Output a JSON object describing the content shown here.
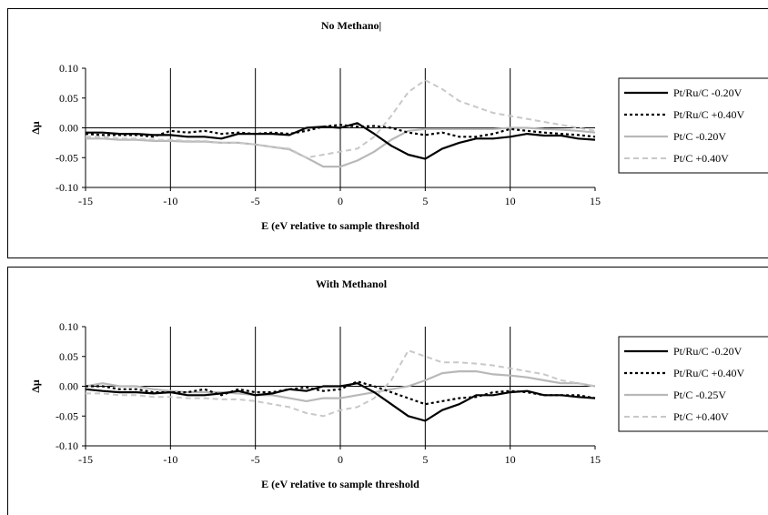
{
  "chart_data": [
    {
      "type": "line",
      "title": "No Methano|",
      "xlabel": "E (eV relative to sample threshold",
      "ylabel": "Δμ",
      "xlim": [
        -15,
        15
      ],
      "ylim": [
        -0.1,
        0.1
      ],
      "xticks": [
        "-15",
        "-10",
        "-5",
        "0",
        "5",
        "10",
        "15"
      ],
      "yticks": [
        "0.10",
        "0.05",
        "0.00",
        "-0.05",
        "-0.10"
      ],
      "vertical_grid": true,
      "legend_position": "right",
      "series": [
        {
          "name": "Pt/Ru/C -0.20V",
          "color": "#000000",
          "style": "solid",
          "x": [
            -15,
            -14,
            -13,
            -12,
            -11,
            -10,
            -9,
            -8,
            -7,
            -6,
            -5,
            -4,
            -3,
            -2,
            -1,
            0,
            1,
            2,
            3,
            4,
            5,
            6,
            7,
            8,
            9,
            10,
            11,
            12,
            13,
            14,
            15
          ],
          "y": [
            -0.008,
            -0.008,
            -0.01,
            -0.01,
            -0.012,
            -0.012,
            -0.015,
            -0.015,
            -0.018,
            -0.01,
            -0.01,
            -0.01,
            -0.012,
            0.0,
            0.002,
            0.0,
            0.008,
            -0.01,
            -0.03,
            -0.045,
            -0.052,
            -0.035,
            -0.025,
            -0.018,
            -0.018,
            -0.015,
            -0.01,
            -0.013,
            -0.013,
            -0.018,
            -0.02
          ]
        },
        {
          "name": "Pt/Ru/C +0.40V",
          "color": "#000000",
          "style": "dotted",
          "x": [
            -15,
            -14,
            -13,
            -12,
            -11,
            -10,
            -9,
            -8,
            -7,
            -6,
            -5,
            -4,
            -3,
            -2,
            -1,
            0,
            1,
            2,
            3,
            4,
            5,
            6,
            7,
            8,
            9,
            10,
            11,
            12,
            13,
            14,
            15
          ],
          "y": [
            -0.01,
            -0.012,
            -0.012,
            -0.012,
            -0.015,
            -0.005,
            -0.008,
            -0.005,
            -0.01,
            -0.008,
            -0.01,
            -0.008,
            -0.01,
            -0.005,
            0.002,
            0.005,
            0.002,
            0.003,
            0.0,
            -0.008,
            -0.012,
            -0.008,
            -0.015,
            -0.015,
            -0.01,
            -0.002,
            -0.005,
            -0.008,
            -0.01,
            -0.012,
            -0.015
          ]
        },
        {
          "name": "Pt/C -0.20V",
          "color": "#b8b8b8",
          "style": "solid",
          "x": [
            -15,
            -14,
            -13,
            -12,
            -11,
            -10,
            -9,
            -8,
            -7,
            -6,
            -5,
            -4,
            -3,
            -2,
            -1,
            0,
            1,
            2,
            3,
            4,
            5,
            6,
            7,
            8,
            9,
            10,
            11,
            12,
            13,
            14,
            15
          ],
          "y": [
            -0.018,
            -0.018,
            -0.02,
            -0.02,
            -0.022,
            -0.022,
            -0.023,
            -0.023,
            -0.025,
            -0.025,
            -0.028,
            -0.032,
            -0.036,
            -0.05,
            -0.065,
            -0.065,
            -0.055,
            -0.04,
            -0.02,
            -0.005,
            -0.002,
            -0.002,
            -0.002,
            -0.002,
            -0.002,
            0.0,
            0.0,
            -0.002,
            -0.003,
            -0.005,
            -0.008
          ]
        },
        {
          "name": "Pt/C +0.40V",
          "color": "#c8c8c8",
          "style": "dashed",
          "x": [
            -15,
            -14,
            -13,
            -12,
            -11,
            -10,
            -9,
            -8,
            -7,
            -6,
            -5,
            -4,
            -3,
            -2,
            -1,
            0,
            1,
            2,
            3,
            4,
            5,
            6,
            7,
            8,
            9,
            10,
            11,
            12,
            13,
            14,
            15
          ],
          "y": [
            -0.015,
            -0.015,
            -0.018,
            -0.018,
            -0.02,
            -0.02,
            -0.022,
            -0.022,
            -0.025,
            -0.025,
            -0.028,
            -0.032,
            -0.035,
            -0.05,
            -0.045,
            -0.04,
            -0.035,
            -0.015,
            0.02,
            0.06,
            0.08,
            0.065,
            0.045,
            0.035,
            0.025,
            0.02,
            0.015,
            0.01,
            0.005,
            0.0,
            -0.005
          ]
        }
      ]
    },
    {
      "type": "line",
      "title": "With Methanol",
      "xlabel": "E (eV relative to sample threshold",
      "ylabel": "Δμ",
      "xlim": [
        -15,
        15
      ],
      "ylim": [
        -0.1,
        0.1
      ],
      "xticks": [
        "-15",
        "-10",
        "-5",
        "0",
        "5",
        "10",
        "15"
      ],
      "yticks": [
        "0.10",
        "0.05",
        "0.00",
        "-0.05",
        "-0.10"
      ],
      "vertical_grid": true,
      "legend_position": "right",
      "series": [
        {
          "name": "Pt/Ru/C -0.20V",
          "color": "#000000",
          "style": "solid",
          "x": [
            -15,
            -14,
            -13,
            -12,
            -11,
            -10,
            -9,
            -8,
            -7,
            -6,
            -5,
            -4,
            -3,
            -2,
            -1,
            0,
            1,
            2,
            3,
            4,
            5,
            6,
            7,
            8,
            9,
            10,
            11,
            12,
            13,
            14,
            15
          ],
          "y": [
            -0.005,
            -0.008,
            -0.01,
            -0.01,
            -0.012,
            -0.01,
            -0.015,
            -0.015,
            -0.012,
            -0.008,
            -0.015,
            -0.012,
            -0.005,
            -0.008,
            0.0,
            0.0,
            0.005,
            -0.01,
            -0.03,
            -0.05,
            -0.058,
            -0.04,
            -0.03,
            -0.015,
            -0.015,
            -0.01,
            -0.008,
            -0.015,
            -0.015,
            -0.018,
            -0.02
          ]
        },
        {
          "name": "Pt/Ru/C +0.40V",
          "color": "#000000",
          "style": "dotted",
          "x": [
            -15,
            -14,
            -13,
            -12,
            -11,
            -10,
            -9,
            -8,
            -7,
            -6,
            -5,
            -4,
            -3,
            -2,
            -1,
            0,
            1,
            2,
            3,
            4,
            5,
            6,
            7,
            8,
            9,
            10,
            11,
            12,
            13,
            14,
            15
          ],
          "y": [
            0.0,
            0.0,
            -0.005,
            -0.005,
            -0.01,
            -0.01,
            -0.01,
            -0.005,
            -0.015,
            -0.005,
            -0.01,
            -0.01,
            -0.005,
            -0.002,
            -0.008,
            -0.005,
            0.008,
            0.0,
            -0.01,
            -0.02,
            -0.03,
            -0.025,
            -0.02,
            -0.018,
            -0.01,
            -0.008,
            -0.01,
            -0.015,
            -0.015,
            -0.015,
            -0.02
          ]
        },
        {
          "name": "Pt/C -0.25V",
          "color": "#b8b8b8",
          "style": "solid",
          "x": [
            -15,
            -14,
            -13,
            -12,
            -11,
            -10,
            -9,
            -8,
            -7,
            -6,
            -5,
            -4,
            -3,
            -2,
            -1,
            0,
            1,
            2,
            3,
            4,
            5,
            6,
            7,
            8,
            9,
            10,
            11,
            12,
            13,
            14,
            15
          ],
          "y": [
            0.0,
            0.005,
            0.0,
            0.0,
            -0.005,
            -0.008,
            -0.01,
            -0.01,
            -0.01,
            -0.012,
            -0.015,
            -0.015,
            -0.02,
            -0.025,
            -0.02,
            -0.02,
            -0.015,
            -0.01,
            -0.005,
            0.0,
            0.01,
            0.022,
            0.025,
            0.025,
            0.02,
            0.018,
            0.015,
            0.01,
            0.005,
            0.005,
            0.0
          ]
        },
        {
          "name": "Pt/C +0.40V",
          "color": "#c8c8c8",
          "style": "dashed",
          "x": [
            -15,
            -14,
            -13,
            -12,
            -11,
            -10,
            -9,
            -8,
            -7,
            -6,
            -5,
            -4,
            -3,
            -2,
            -1,
            0,
            1,
            2,
            3,
            4,
            5,
            6,
            7,
            8,
            9,
            10,
            11,
            12,
            13,
            14,
            15
          ],
          "y": [
            -0.012,
            -0.012,
            -0.015,
            -0.015,
            -0.018,
            -0.018,
            -0.02,
            -0.02,
            -0.022,
            -0.022,
            -0.025,
            -0.03,
            -0.035,
            -0.045,
            -0.05,
            -0.04,
            -0.035,
            -0.02,
            0.01,
            0.06,
            0.05,
            0.04,
            0.04,
            0.038,
            0.035,
            0.03,
            0.025,
            0.02,
            0.01,
            0.005,
            0.0
          ]
        }
      ]
    }
  ]
}
